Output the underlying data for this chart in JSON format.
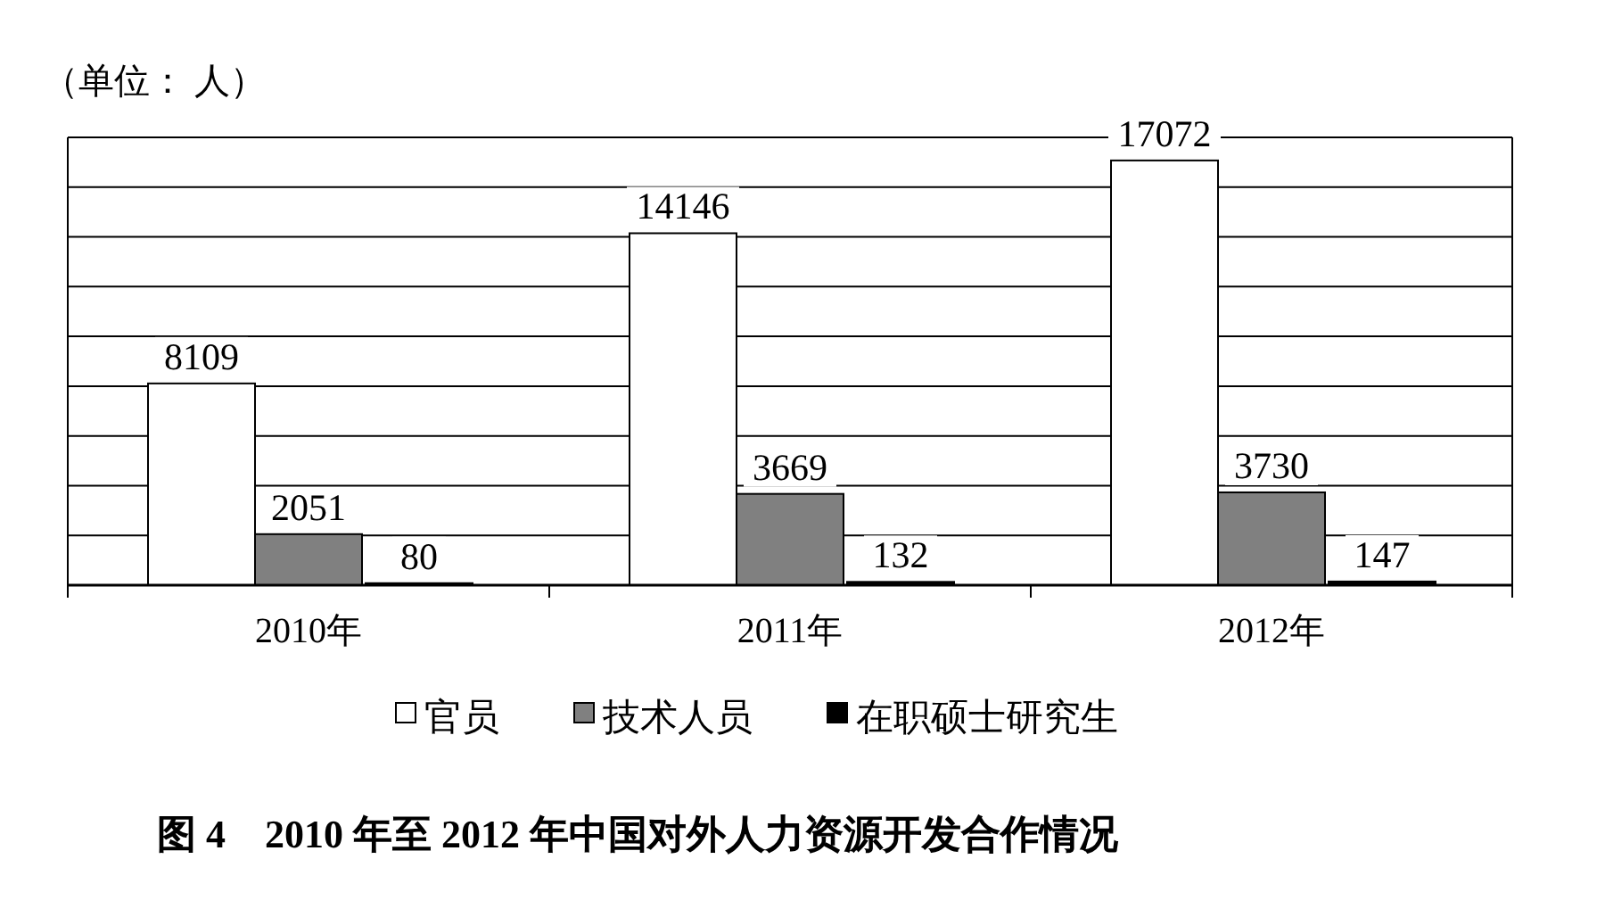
{
  "chart_data": {
    "type": "bar",
    "title": "图 4　2010 年至 2012 年中国对外人力资源开发合作情况",
    "ylabel": "（单位： 人）",
    "categories": [
      "2010年",
      "2011年",
      "2012年"
    ],
    "series": [
      {
        "name": "官员",
        "color": "#ffffff",
        "values": [
          8109,
          14146,
          17072
        ]
      },
      {
        "name": "技术人员",
        "color": "#808080",
        "values": [
          2051,
          3669,
          3730
        ]
      },
      {
        "name": "在职硕士研究生",
        "color": "#000000",
        "values": [
          80,
          132,
          147
        ]
      }
    ],
    "ylim": [
      0,
      18000
    ],
    "yticks": [
      {
        "value": 0,
        "label": null
      },
      {
        "value": 2000,
        "label": null
      },
      {
        "value": 4000,
        "label": null
      },
      {
        "value": 6000,
        "label": null
      },
      {
        "value": 8000,
        "label": null
      },
      {
        "value": 10000,
        "label": null
      },
      {
        "value": 12000,
        "label": null
      },
      {
        "value": 14000,
        "label": null
      },
      {
        "value": 16000,
        "label": null
      },
      {
        "value": 18000,
        "label": null
      }
    ],
    "tick_labels": "x",
    "grid": "y",
    "data_labels": true,
    "legend": "bottom"
  }
}
